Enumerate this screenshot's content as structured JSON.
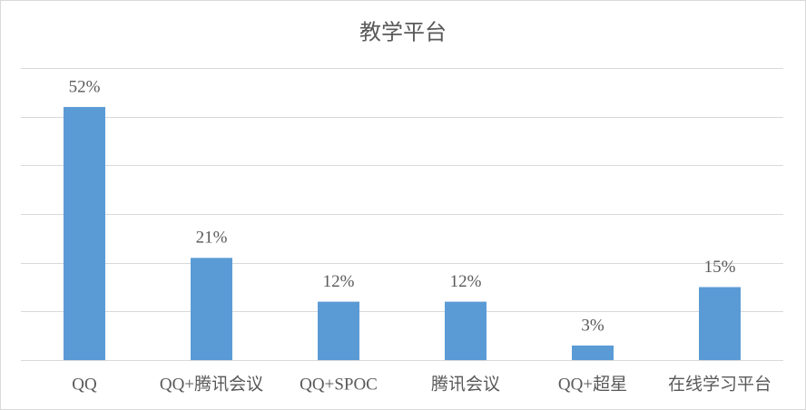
{
  "chart_data": {
    "type": "bar",
    "title": "教学平台",
    "categories": [
      "QQ",
      "QQ+腾讯会议",
      "QQ+SPOC",
      "腾讯会议",
      "QQ+超星",
      "在线学习平台"
    ],
    "values": [
      52,
      21,
      12,
      12,
      3,
      15
    ],
    "value_labels": [
      "52%",
      "21%",
      "12%",
      "12%",
      "3%",
      "15%"
    ],
    "color": "#5b9bd5",
    "ylim": [
      0,
      60
    ],
    "yticks": [
      0,
      10,
      20,
      30,
      40,
      50,
      60
    ],
    "grid": true
  }
}
